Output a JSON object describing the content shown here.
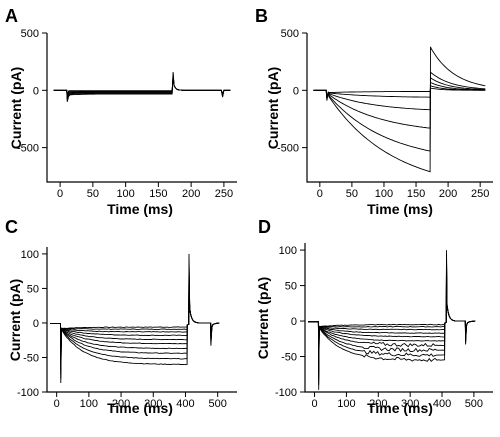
{
  "chart_data": [
    {
      "type": "line",
      "panel": "A",
      "xlabel": "Time (ms)",
      "ylabel": "Current (pA)",
      "xlim": [
        -20,
        270
      ],
      "ylim": [
        -800,
        500
      ],
      "xticks": [
        0,
        50,
        100,
        150,
        200,
        250
      ],
      "yticks": [
        500,
        0,
        -500
      ],
      "pulse_on_ms": 10,
      "pulse_off_ms": 172,
      "steady_state_pA": [
        -3,
        -8,
        -14,
        -20,
        -27,
        -33
      ],
      "onset_spike_pA": -100,
      "tail_peak_pA": 160,
      "end_artifact_pA": -60
    },
    {
      "type": "line",
      "panel": "B",
      "xlabel": "Time (ms)",
      "ylabel": "Current (pA)",
      "xlim": [
        -20,
        270
      ],
      "ylim": [
        -800,
        500
      ],
      "xticks": [
        0,
        50,
        100,
        150,
        200,
        250
      ],
      "yticks": [
        500,
        0,
        -500
      ],
      "pulse_on_ms": 10,
      "pulse_off_ms": 172,
      "end_of_pulse_pA": [
        -10,
        -60,
        -170,
        -330,
        -530,
        -710
      ],
      "tail_peak_pA": [
        20,
        40,
        70,
        110,
        160,
        380
      ],
      "onset_spike_pA": -90
    },
    {
      "type": "line",
      "panel": "C",
      "xlabel": "Time (ms)",
      "ylabel": "Current (pA)",
      "xlim": [
        -30,
        560
      ],
      "ylim": [
        -100,
        110
      ],
      "xticks": [
        0,
        100,
        200,
        300,
        400,
        500
      ],
      "yticks": [
        100,
        50,
        0,
        -50,
        -100
      ],
      "pulse_on_ms": 12,
      "pulse_off_ms": 405,
      "end_of_pulse_pA": [
        -6,
        -9,
        -13,
        -18,
        -24,
        -30,
        -37,
        -44,
        -52,
        -60
      ],
      "onset_spike_pA": -87,
      "tail_peak_pA": 100,
      "end_artifact_pA": -33
    },
    {
      "type": "line",
      "panel": "D",
      "xlabel": "Time (ms)",
      "ylabel": "Current (pA)",
      "xlim": [
        -30,
        560
      ],
      "ylim": [
        -100,
        110
      ],
      "xticks": [
        0,
        100,
        200,
        300,
        400,
        500
      ],
      "yticks": [
        100,
        50,
        0,
        -50,
        -100
      ],
      "pulse_on_ms": 12,
      "pulse_off_ms": 408,
      "end_of_pulse_pA": [
        -5,
        -8,
        -12,
        -17,
        -22,
        -28,
        -34,
        -41,
        -48,
        -55
      ],
      "onset_spike_pA": -97,
      "tail_peak_pA": 100,
      "end_artifact_pA": -33
    }
  ]
}
